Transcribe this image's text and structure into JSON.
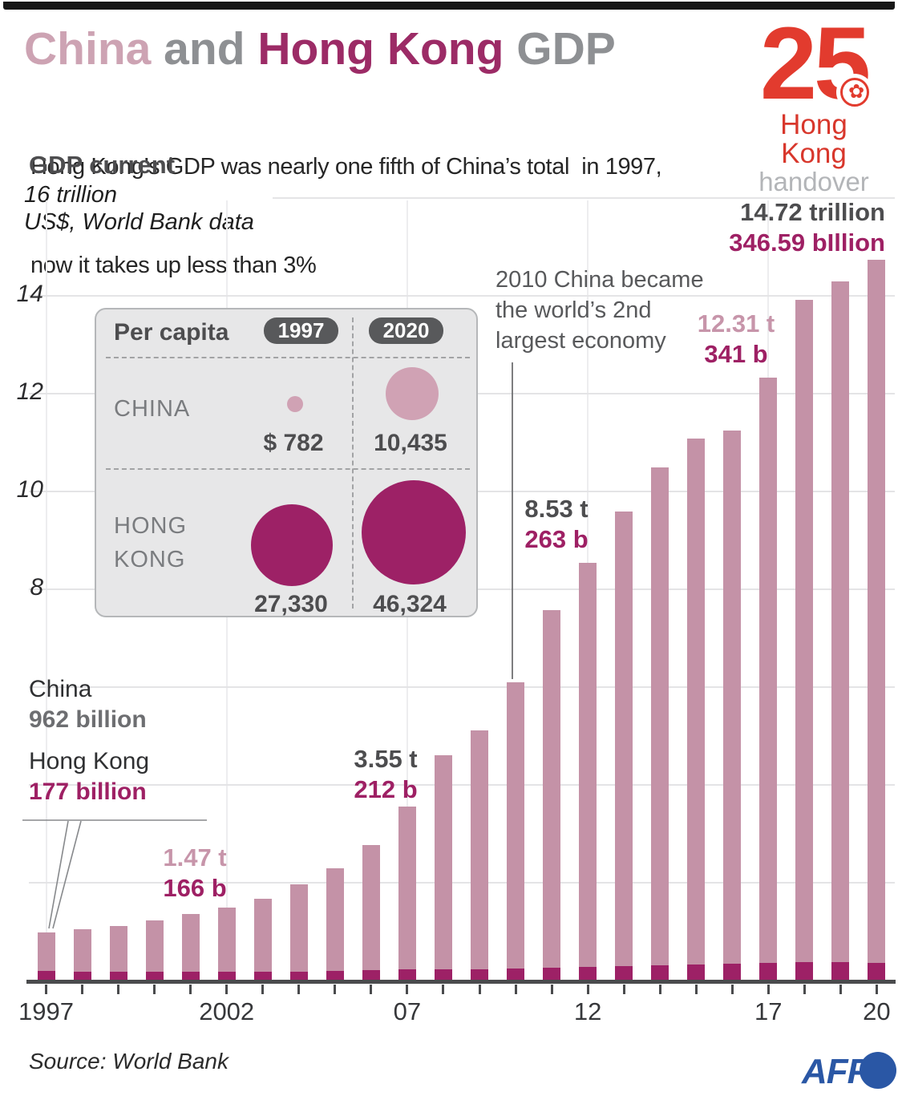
{
  "header": {
    "title": {
      "china": "China",
      "and": " and ",
      "hong_kong": "Hong Kong",
      "gdp": " GDP"
    },
    "subtitle_line1": "Hong Kong’s GDP was nearly one fifth of China’s total  in 1997,",
    "subtitle_line2": "now it takes up less than 3%",
    "section_label": "GDP current"
  },
  "logo": {
    "number": "25",
    "region": "Hong Kong",
    "event": "handover",
    "flower_icon": "bauhinia-flower"
  },
  "axis": {
    "unit_line1": "16 trillion",
    "unit_line2": "US$, World Bank data",
    "yticks": [
      14,
      12,
      10,
      8
    ],
    "xticks": [
      {
        "label": "1997",
        "year": 1997
      },
      {
        "label": "2002",
        "year": 2002
      },
      {
        "label": "07",
        "year": 2007
      },
      {
        "label": "12",
        "year": 2012
      },
      {
        "label": "17",
        "year": 2017
      },
      {
        "label": "20",
        "year": 2020
      }
    ],
    "vgrid_years": [
      1997,
      2002,
      2007,
      2012,
      2017
    ]
  },
  "chart_data": [
    {
      "type": "bar",
      "stacked": true,
      "title": "GDP current",
      "ylabel": "trillion US$, World Bank data",
      "ylim": [
        0,
        16
      ],
      "grid": "horizontal every 2 trillion",
      "x": [
        1997,
        1998,
        1999,
        2000,
        2001,
        2002,
        2003,
        2004,
        2005,
        2006,
        2007,
        2008,
        2009,
        2010,
        2011,
        2012,
        2013,
        2014,
        2015,
        2016,
        2017,
        2018,
        2019,
        2020
      ],
      "series": [
        {
          "name": "China",
          "unit": "trillion US$",
          "color": "#c492a7",
          "values": [
            0.962,
            1.029,
            1.094,
            1.211,
            1.339,
            1.471,
            1.66,
            1.955,
            2.286,
            2.752,
            3.55,
            4.594,
            5.102,
            6.087,
            7.552,
            8.532,
            9.57,
            10.476,
            11.062,
            11.233,
            12.31,
            13.895,
            14.28,
            14.723
          ]
        },
        {
          "name": "Hong Kong",
          "unit": "billion US$",
          "color": "#9d2166",
          "values": [
            177,
            169,
            166,
            172,
            169,
            166,
            161,
            169,
            181,
            193,
            212,
            219,
            214,
            229,
            249,
            263,
            276,
            291,
            309,
            321,
            341,
            362,
            363,
            346.59
          ]
        }
      ]
    },
    {
      "type": "bubble-table",
      "title": "Per capita",
      "columns": [
        "1997",
        "2020"
      ],
      "rows": [
        {
          "label": "CHINA",
          "values_usd": [
            782,
            10435
          ]
        },
        {
          "label": "HONG KONG",
          "values_usd": [
            27330,
            46324
          ]
        }
      ]
    }
  ],
  "annotation": {
    "line1": "2010 China became",
    "line2": "the world’s 2nd",
    "line3": "largest economy"
  },
  "callout_1997": {
    "china_label": "China",
    "china_value": "962 billion",
    "hk_label": "Hong Kong",
    "hk_value": "177 billion"
  },
  "value_labels": {
    "y2002": {
      "top": "1.47 t",
      "bottom": "166 b"
    },
    "y2007": {
      "top": "3.55 t",
      "bottom": "212 b"
    },
    "y2012": {
      "top": "8.53 t",
      "bottom": "263 b"
    },
    "y2017": {
      "top": "12.31 t",
      "bottom": "341 b"
    },
    "y2020": {
      "top": "14.72 trillion",
      "bottom": "346.59 bIllion"
    }
  },
  "percapita": {
    "title": "Per capita",
    "col_1997": "1997",
    "col_2020": "2020",
    "china_label": "CHINA",
    "hk_label_line1": "HONG",
    "hk_label_line2": "KONG",
    "china_1997": "$ 782",
    "china_2020": "10,435",
    "hk_1997": "27,330",
    "hk_2020": "46,324",
    "bubbles": [
      {
        "group": "china",
        "year": 1997,
        "value_usd": 782,
        "x": 248,
        "y": 118,
        "r": 10,
        "color": "#d0a2b4"
      },
      {
        "group": "china",
        "year": 2020,
        "value_usd": 10435,
        "x": 394,
        "y": 105,
        "r": 33,
        "color": "#d0a2b4"
      },
      {
        "group": "hk",
        "year": 1997,
        "value_usd": 27330,
        "x": 244,
        "y": 294,
        "r": 51,
        "color": "#9d2166"
      },
      {
        "group": "hk",
        "year": 2020,
        "value_usd": 46324,
        "x": 396,
        "y": 278,
        "r": 65,
        "color": "#9d2166"
      }
    ]
  },
  "footer": {
    "source": "Source: World Bank",
    "agency": "AFP"
  },
  "colors": {
    "china_bar": "#c492a7",
    "hongkong_bar": "#9d2166",
    "title_china": "#cda3b3",
    "title_hongkong": "#9c2b66",
    "title_gray": "#8e9093",
    "dark_text": "#4d4d4f",
    "magenta_text": "#9e2064",
    "pink_text": "#c795aa",
    "logo_red": "#e23b2e",
    "afp_blue": "#2a57a5",
    "panel_bg": "#e7e7e8"
  }
}
